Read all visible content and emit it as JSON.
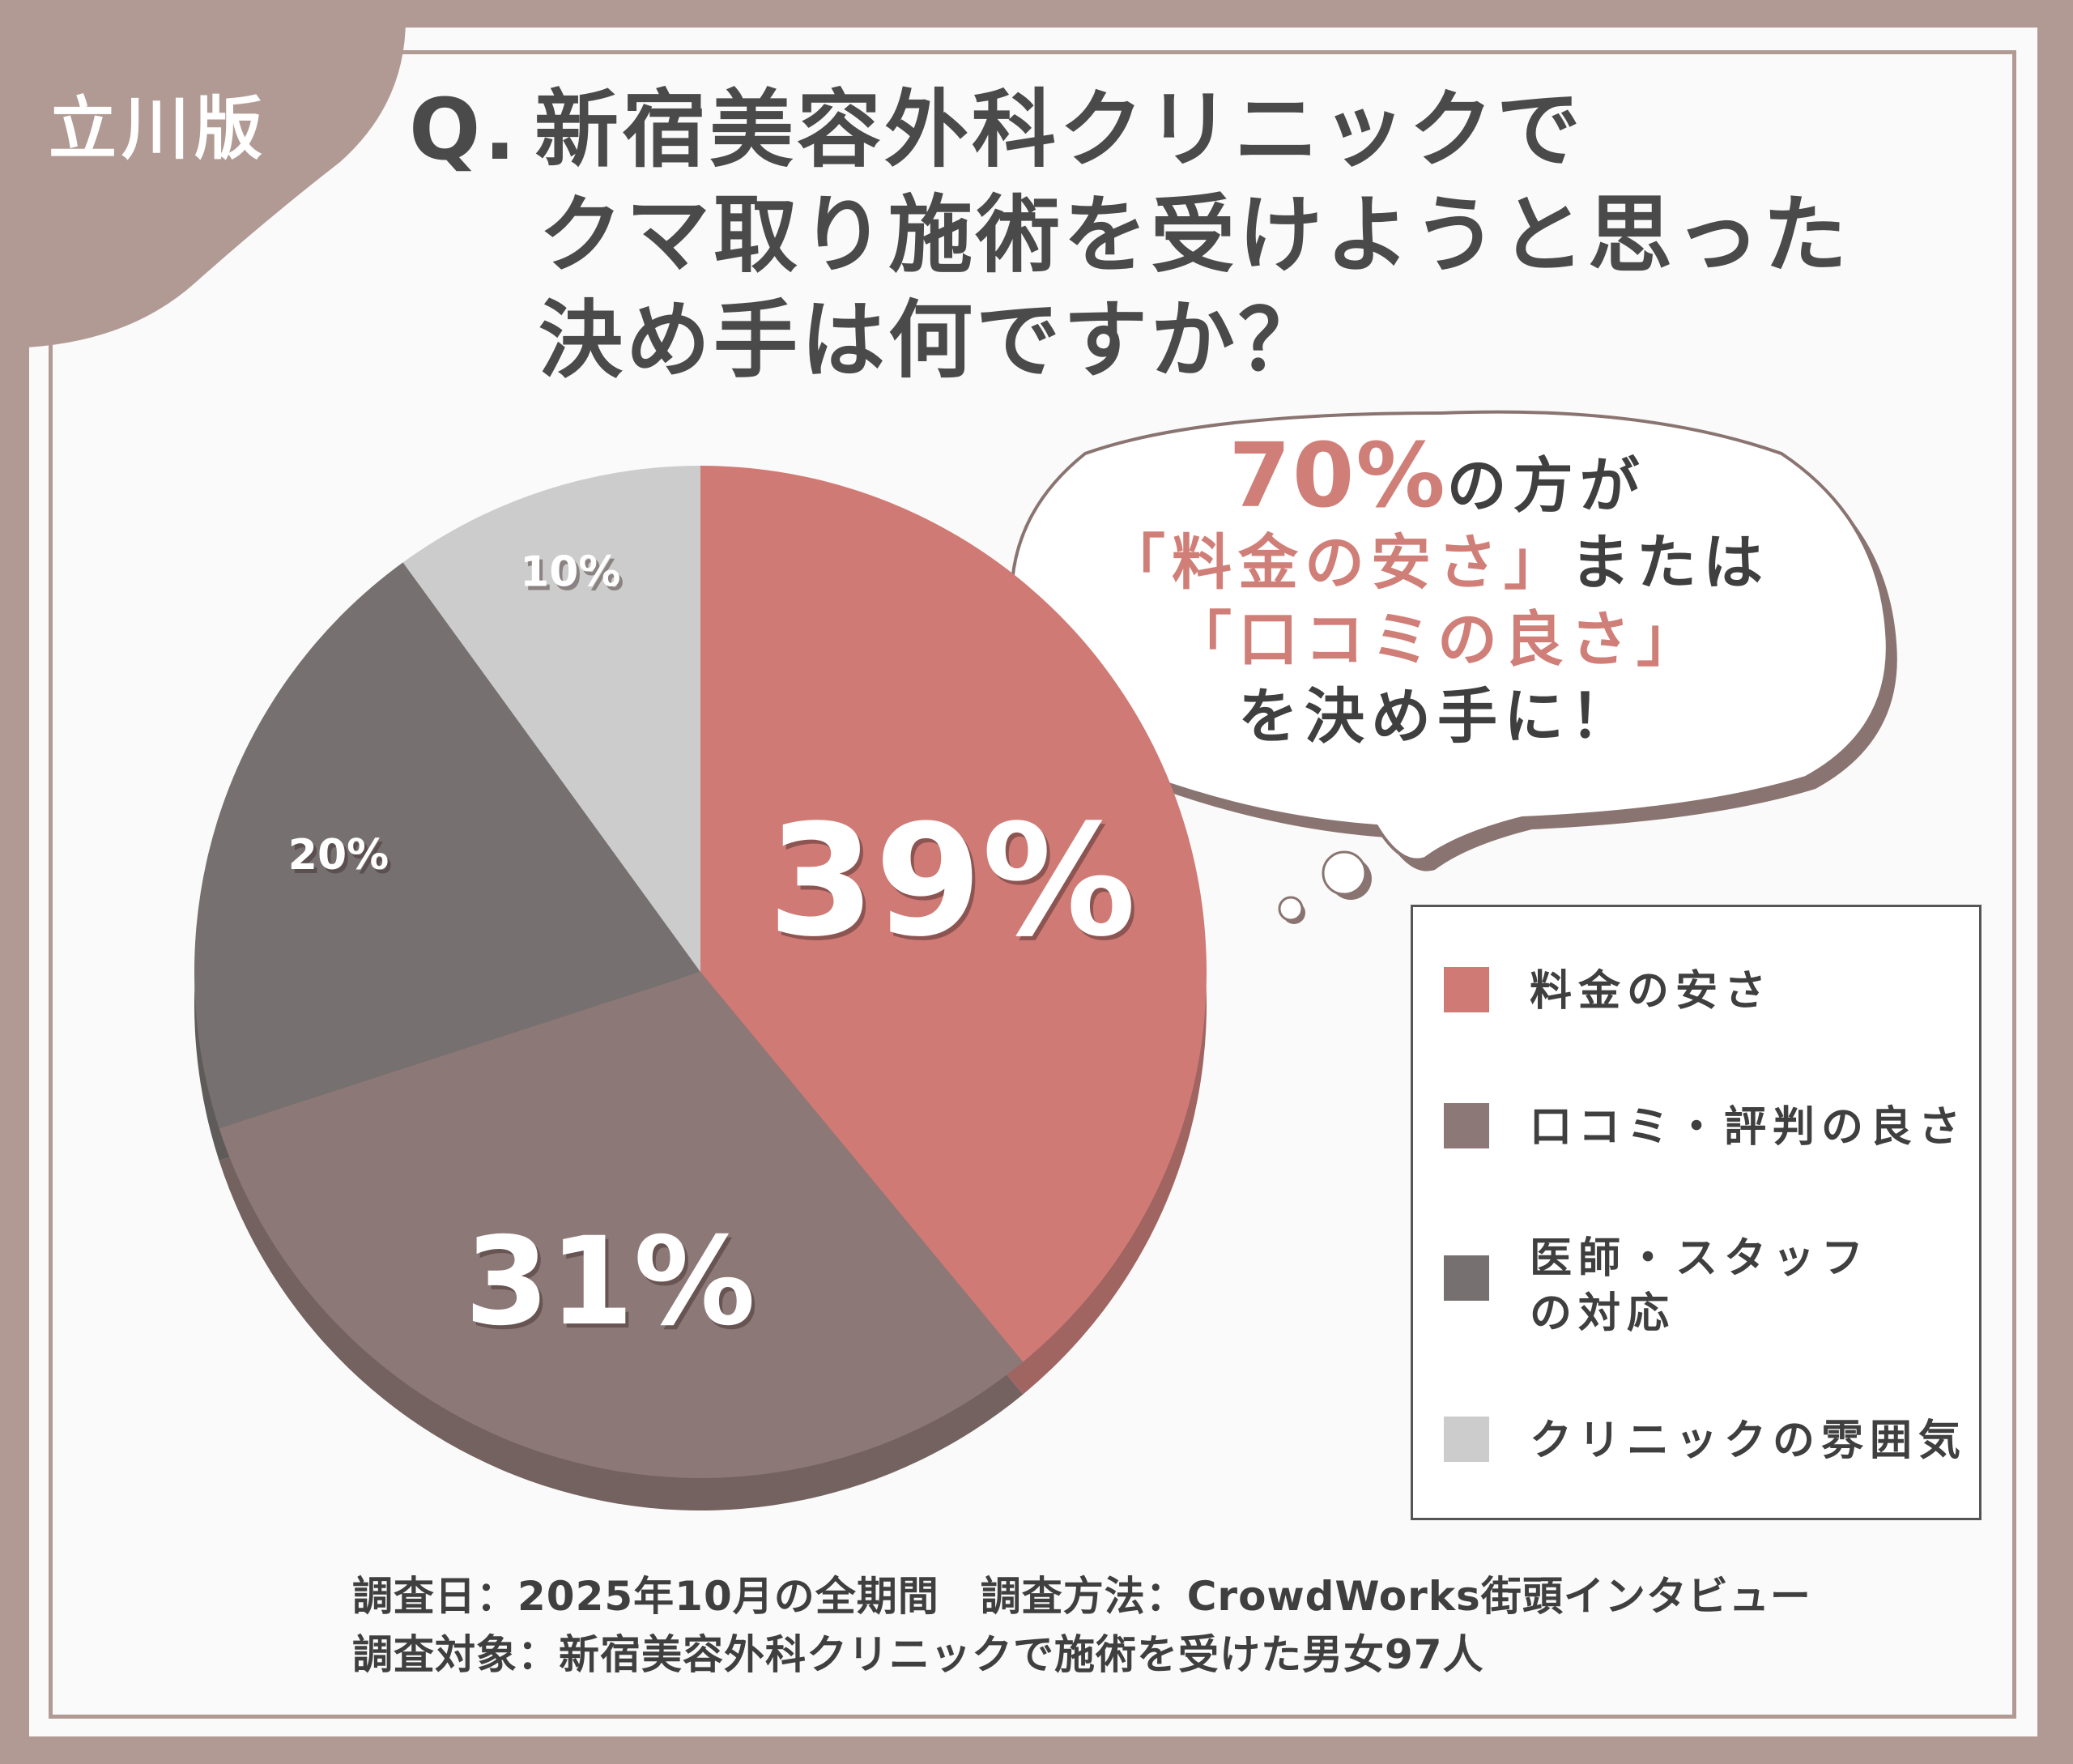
{
  "badge": "立川版",
  "question": {
    "prefix": "Q.",
    "line1": "新宿美容外科クリニックで",
    "line2": "クマ取り施術を受けようと思った",
    "line3": "決め手は何ですか？"
  },
  "callout": {
    "percent": "70%",
    "line1_suffix": "の方が",
    "line2_accent": "「料金の安さ」",
    "line2_suffix": "または",
    "line3_accent": "「口コミの良さ」",
    "line4": "を決め手に！"
  },
  "footer": {
    "line1": "調査日：2025年10月の全期間　調査方法：CrowdWorks街頭インタビュー",
    "line2": "調査対象：新宿美容外科クリニックで施術を受けた男女97人"
  },
  "colors": {
    "frame": "#b19a93",
    "accent": "#d07f78"
  },
  "chart_data": {
    "type": "pie",
    "unit": "%",
    "start": "top",
    "direction": "clockwise",
    "slices": [
      {
        "name": "料金の安さ",
        "value": 39,
        "label": "39%",
        "color": "#d07a75",
        "side_color": "#a06461"
      },
      {
        "name": "口コミ・評判の良さ",
        "value": 31,
        "label": "31%",
        "color": "#8c7977",
        "side_color": "#736260"
      },
      {
        "name": "医師・スタッフの対応",
        "value": 20,
        "label": "20%",
        "color": "#767170",
        "side_color": "#5f5b5a"
      },
      {
        "name": "クリニックの雰囲気",
        "value": 10,
        "label": "10%",
        "color": "#cdcccc",
        "side_color": "#a9a7a7"
      }
    ],
    "legend": [
      "料金の安さ",
      "口コミ・評判の良さ",
      "医師・スタッフ\nの対応",
      "クリニックの雰囲気"
    ],
    "legend_position": "right"
  }
}
